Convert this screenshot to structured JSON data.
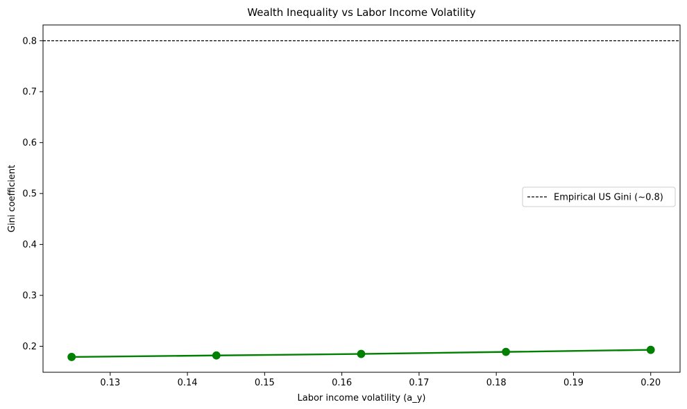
{
  "chart_data": {
    "type": "line",
    "title": "Wealth Inequality vs Labor Income Volatility",
    "xlabel": "Labor income volatility (a_y)",
    "ylabel": "Gini coefficient",
    "xlim": [
      0.1213,
      0.2038
    ],
    "ylim": [
      0.149,
      0.831
    ],
    "xticks": [
      0.13,
      0.14,
      0.15,
      0.16,
      0.17,
      0.18,
      0.19,
      0.2
    ],
    "xtick_labels": [
      "0.13",
      "0.14",
      "0.15",
      "0.16",
      "0.17",
      "0.18",
      "0.19",
      "0.20"
    ],
    "yticks": [
      0.2,
      0.3,
      0.4,
      0.5,
      0.6,
      0.7,
      0.8
    ],
    "ytick_labels": [
      "0.2",
      "0.3",
      "0.4",
      "0.5",
      "0.6",
      "0.7",
      "0.8"
    ],
    "grid": false,
    "series": [
      {
        "x": [
          0.125,
          0.14375,
          0.1625,
          0.18125,
          0.2
        ],
        "y": [
          0.179,
          0.182,
          0.185,
          0.189,
          0.193
        ],
        "color": "#008000",
        "style": "solid",
        "marker": "circle"
      }
    ],
    "reference_lines": [
      {
        "name": "Empirical US Gini (~0.8)",
        "y": 0.8,
        "color": "#000000",
        "style": "dashed"
      }
    ],
    "legend": {
      "placement": "center-right"
    }
  }
}
